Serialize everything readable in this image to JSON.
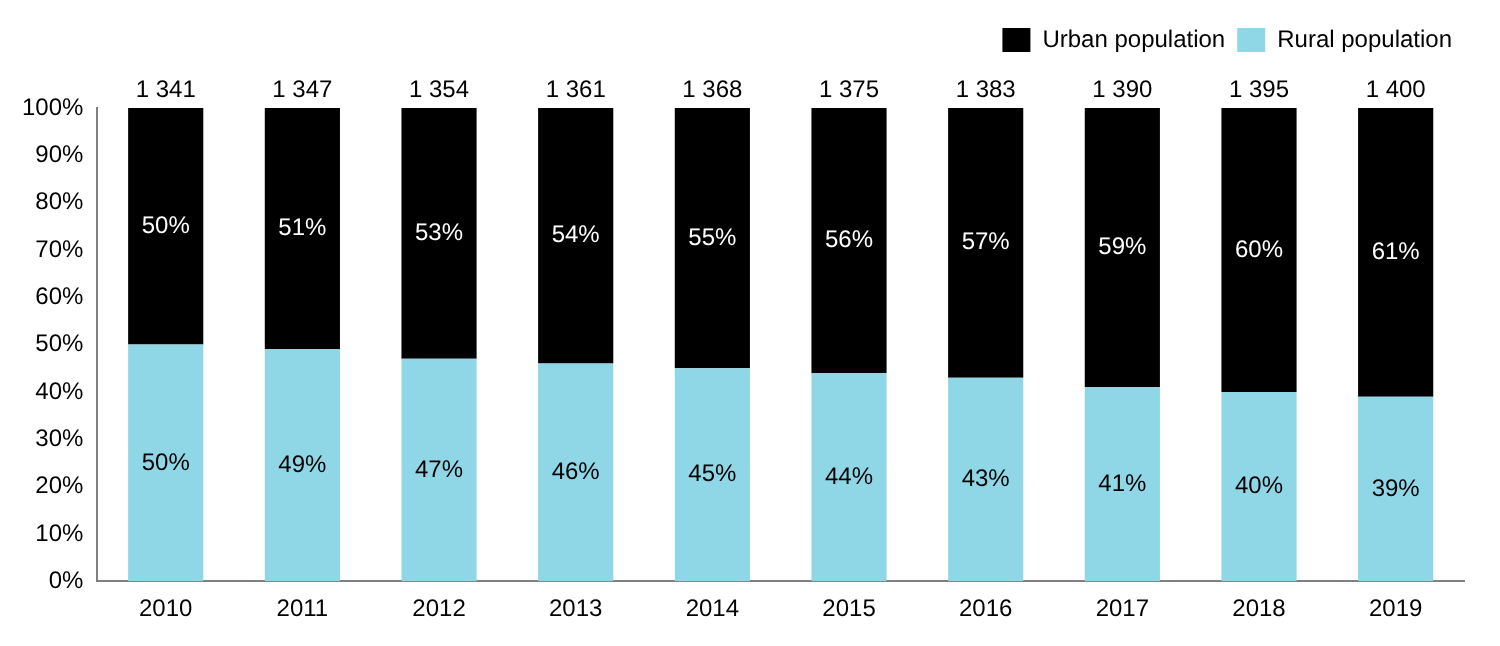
{
  "chart_data": {
    "type": "bar",
    "stacked": true,
    "categories": [
      "2010",
      "2011",
      "2012",
      "2013",
      "2014",
      "2015",
      "2016",
      "2017",
      "2018",
      "2019"
    ],
    "series": [
      {
        "name": "Rural population",
        "color": "#8fd7e6",
        "values": [
          50,
          49,
          47,
          46,
          45,
          44,
          43,
          41,
          40,
          39
        ],
        "value_labels": [
          "50%",
          "49%",
          "47%",
          "46%",
          "45%",
          "44%",
          "43%",
          "41%",
          "40%",
          "39%"
        ]
      },
      {
        "name": "Urban population",
        "color": "#000000",
        "values": [
          50,
          51,
          53,
          54,
          55,
          56,
          57,
          59,
          60,
          61
        ],
        "value_labels": [
          "50%",
          "51%",
          "53%",
          "54%",
          "55%",
          "56%",
          "57%",
          "59%",
          "60%",
          "61%"
        ]
      }
    ],
    "annotations": [
      {
        "text": "1 341",
        "x": "2010",
        "y": 100
      },
      {
        "text": "1 347",
        "x": "2011",
        "y": 100
      },
      {
        "text": "1 354",
        "x": "2012",
        "y": 100
      },
      {
        "text": "1 361",
        "x": "2013",
        "y": 100
      },
      {
        "text": "1 368",
        "x": "2014",
        "y": 100
      },
      {
        "text": "1 375",
        "x": "2015",
        "y": 100
      },
      {
        "text": "1 383",
        "x": "2016",
        "y": 100
      },
      {
        "text": "1 390",
        "x": "2017",
        "y": 100
      },
      {
        "text": "1 395",
        "x": "2018",
        "y": 100
      },
      {
        "text": "1 400",
        "x": "2019",
        "y": 100
      }
    ],
    "ylim": [
      0,
      100
    ],
    "yticks": [
      {
        "value": 0,
        "label": "0%"
      },
      {
        "value": 10,
        "label": "10%"
      },
      {
        "value": 20,
        "label": "20%"
      },
      {
        "value": 30,
        "label": "30%"
      },
      {
        "value": 40,
        "label": "40%"
      },
      {
        "value": 50,
        "label": "50%"
      },
      {
        "value": 60,
        "label": "60%"
      },
      {
        "value": 70,
        "label": "70%"
      },
      {
        "value": 80,
        "label": "80%"
      },
      {
        "value": 90,
        "label": "90%"
      },
      {
        "value": 100,
        "label": "100%"
      }
    ],
    "legend": "top right",
    "grid": false
  }
}
